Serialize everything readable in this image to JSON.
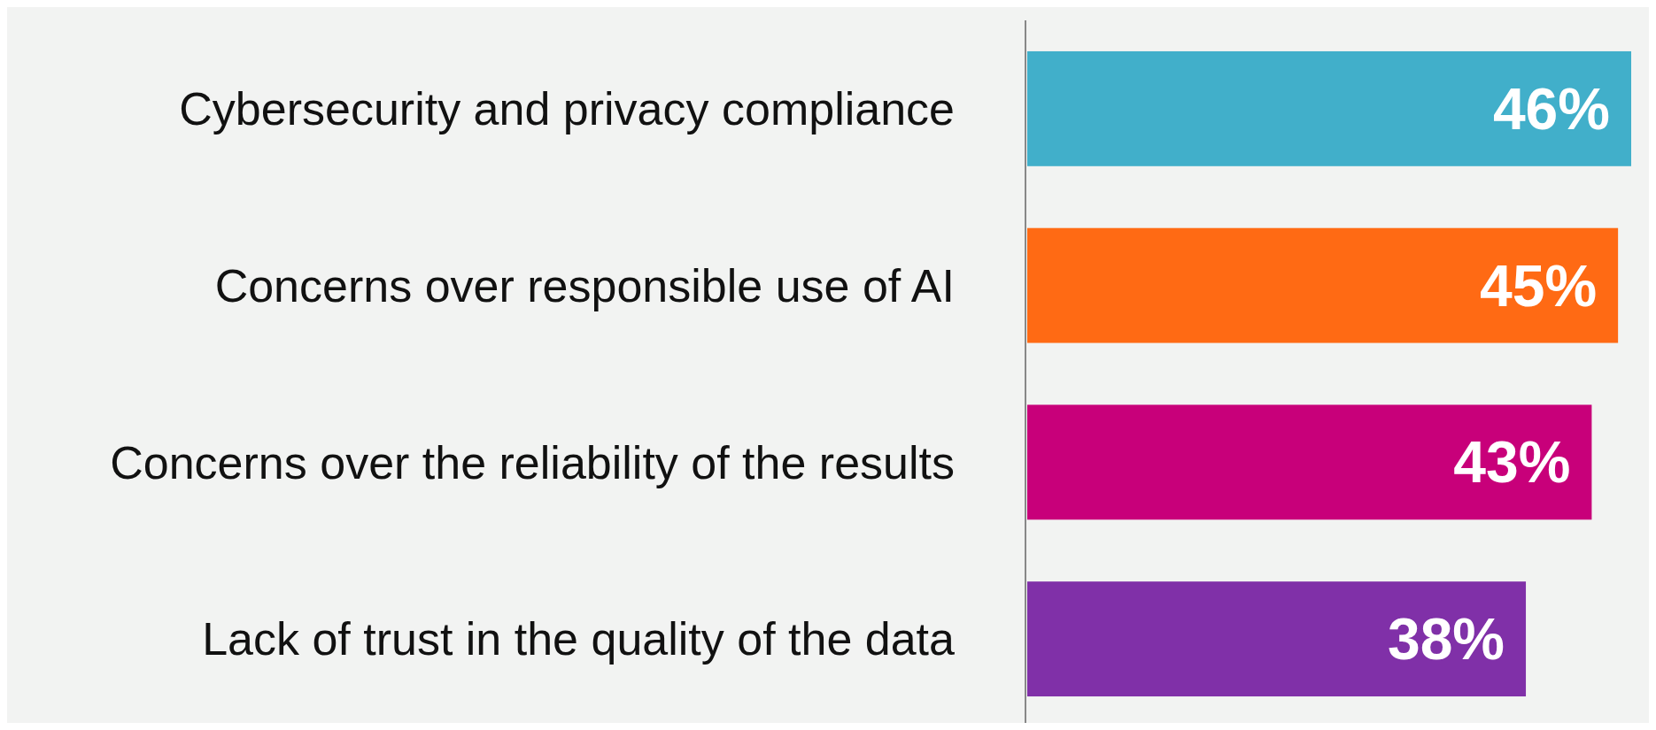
{
  "chart_data": {
    "type": "bar",
    "orientation": "horizontal",
    "categories": [
      "Cybersecurity and privacy compliance",
      "Concerns over responsible use of AI",
      "Concerns over the reliability of the results",
      "Lack of trust in the quality of the data"
    ],
    "values": [
      46,
      45,
      43,
      38
    ],
    "colors": [
      "#41afca",
      "#ff6a14",
      "#c8007a",
      "#8030a8"
    ],
    "value_labels": [
      "46%",
      "45%",
      "43%",
      "38%"
    ]
  }
}
